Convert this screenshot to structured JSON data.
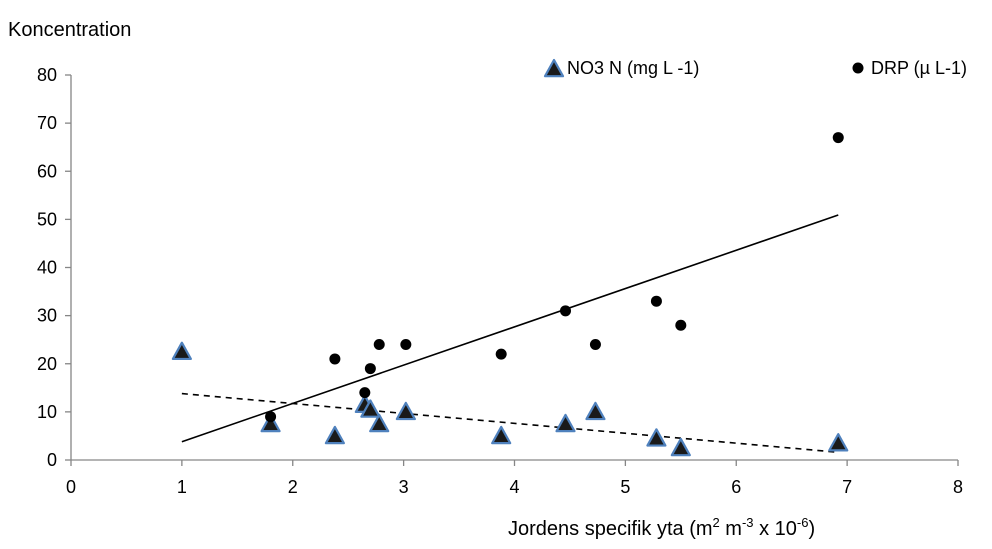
{
  "chart_data": {
    "type": "scatter",
    "ylabel": "Koncentration",
    "xlabel": {
      "main": "Jordens  specifik yta  (m",
      "sup1": "2",
      "mid1": " m",
      "sup2": "-3",
      "mid2": " x 10",
      "sup3": "-6",
      "end": ")"
    },
    "xlim": [
      0,
      8
    ],
    "ylim": [
      0,
      80
    ],
    "x_ticks": [
      "0",
      "1",
      "2",
      "3",
      "4",
      "5",
      "6",
      "7",
      "8"
    ],
    "y_ticks": [
      "0",
      "10",
      "20",
      "30",
      "40",
      "50",
      "60",
      "70",
      "80"
    ],
    "grid": false,
    "legend_position": "top",
    "series": [
      {
        "name": "NO3 N (mg L -1)",
        "marker": "triangle",
        "points": [
          [
            1.0,
            22.5
          ],
          [
            1.8,
            7.5
          ],
          [
            2.38,
            5.0
          ],
          [
            2.65,
            11.5
          ],
          [
            2.7,
            10.5
          ],
          [
            2.78,
            7.5
          ],
          [
            3.02,
            10.0
          ],
          [
            3.88,
            5.0
          ],
          [
            4.46,
            7.5
          ],
          [
            4.73,
            10.0
          ],
          [
            5.28,
            4.5
          ],
          [
            5.5,
            2.5
          ],
          [
            6.92,
            3.5
          ]
        ],
        "trendline": {
          "style": "dashed",
          "from": [
            1.0,
            13.8
          ],
          "to": [
            6.92,
            1.6
          ]
        }
      },
      {
        "name": "DRP (µ L-1)",
        "marker": "circle",
        "points": [
          [
            1.8,
            9
          ],
          [
            2.38,
            21
          ],
          [
            2.65,
            14
          ],
          [
            2.7,
            19
          ],
          [
            2.78,
            24
          ],
          [
            3.02,
            24
          ],
          [
            3.88,
            22
          ],
          [
            4.46,
            31
          ],
          [
            4.73,
            24
          ],
          [
            5.28,
            33
          ],
          [
            5.5,
            28
          ],
          [
            6.92,
            67
          ]
        ],
        "trendline": {
          "style": "solid",
          "from": [
            1.0,
            3.8
          ],
          "to": [
            6.92,
            50.9
          ]
        }
      }
    ],
    "colors": {
      "triangle_fill": "#1a1a1a",
      "triangle_edge": "#4f81bd",
      "circle_fill": "#000000",
      "axis": "#868686",
      "trend": "#000000"
    }
  }
}
